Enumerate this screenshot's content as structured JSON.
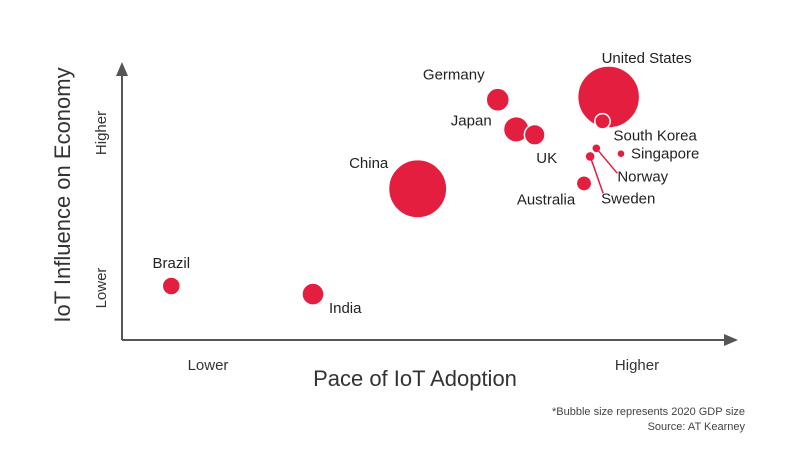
{
  "chart_data": {
    "type": "scatter",
    "title": "",
    "xlabel": "Pace of IoT Adoption",
    "ylabel": "IoT Influence on Economy",
    "x_tick_labels": [
      "Lower",
      "Higher"
    ],
    "y_tick_labels": [
      "Lower",
      "Higher"
    ],
    "xlim": [
      0,
      100
    ],
    "ylim": [
      0,
      100
    ],
    "grid": false,
    "bubble_size_meaning": "2020 GDP size",
    "points": [
      {
        "label": "Brazil",
        "x": 8,
        "y": 20,
        "size": 2.2
      },
      {
        "label": "India",
        "x": 31,
        "y": 17,
        "size": 3.3
      },
      {
        "label": "China",
        "x": 48,
        "y": 56,
        "size": 23
      },
      {
        "label": "Germany",
        "x": 61,
        "y": 89,
        "size": 3.6
      },
      {
        "label": "Japan",
        "x": 64,
        "y": 78,
        "size": 4.4
      },
      {
        "label": "UK",
        "x": 67,
        "y": 76,
        "size": 2.9
      },
      {
        "label": "Australia",
        "x": 75,
        "y": 58,
        "size": 1.6
      },
      {
        "label": "United States",
        "x": 79,
        "y": 90,
        "size": 26
      },
      {
        "label": "South Korea",
        "x": 78,
        "y": 81,
        "size": 1.6
      },
      {
        "label": "Norway",
        "x": 77,
        "y": 71,
        "size": 0.4
      },
      {
        "label": "Sweden",
        "x": 76,
        "y": 68,
        "size": 0.5
      },
      {
        "label": "Singapore",
        "x": 81,
        "y": 69,
        "size": 0.3
      }
    ]
  },
  "footnote": {
    "line1": "*Bubble size represents 2020 GDP size",
    "line2": "Source: AT Kearney"
  },
  "colors": {
    "bubble": "#E41E3F",
    "bubble_outline": "#ffffff",
    "axis": "#555555",
    "text": "#333333"
  }
}
